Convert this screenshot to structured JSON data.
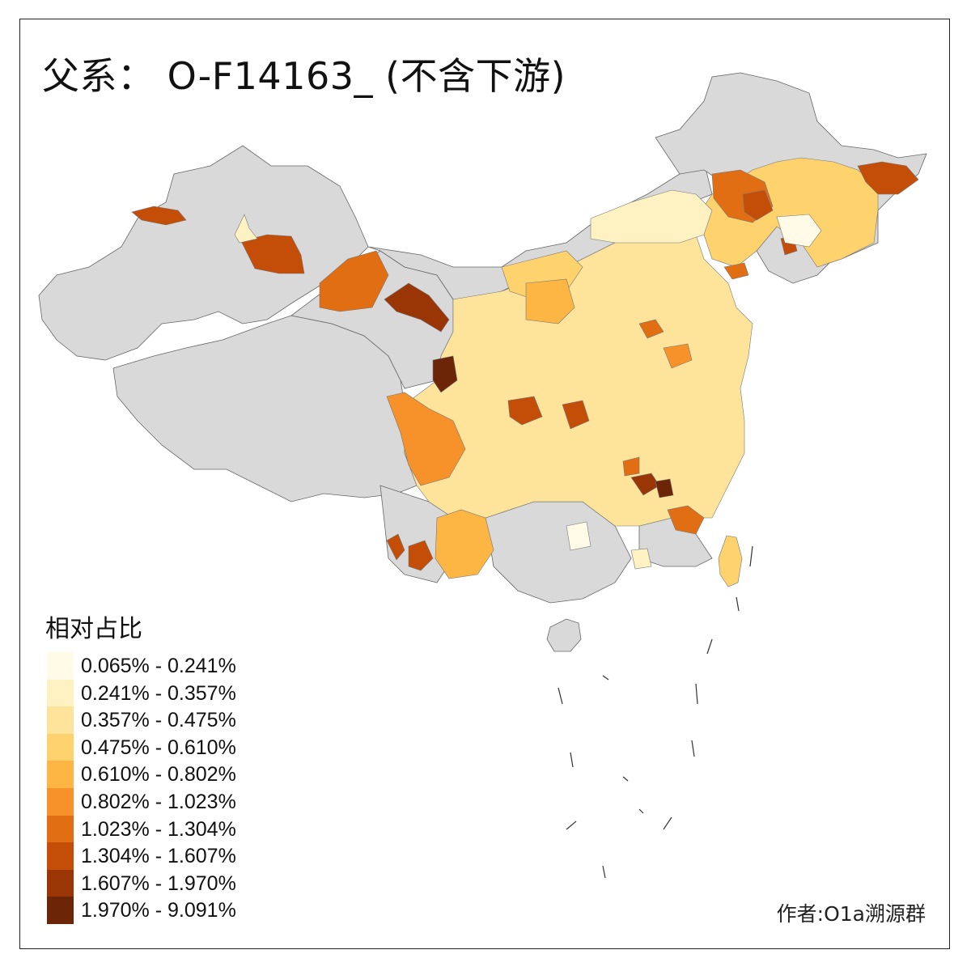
{
  "map": {
    "title": "父系： O-F14163_ (不含下游)",
    "legend_title": "相对占比",
    "credit": "作者:O1a溯源群",
    "no_data_color": "#d9d9d9",
    "legend": [
      {
        "range": "0.065% - 0.241%",
        "color": "#fffbe6"
      },
      {
        "range": "0.241% - 0.357%",
        "color": "#fff2c2"
      },
      {
        "range": "0.357% - 0.475%",
        "color": "#fde49a"
      },
      {
        "range": "0.475% - 0.610%",
        "color": "#fed36e"
      },
      {
        "range": "0.610% - 0.802%",
        "color": "#fdb544"
      },
      {
        "range": "0.802% - 1.023%",
        "color": "#f7922a"
      },
      {
        "range": "1.023% - 1.304%",
        "color": "#e26e14"
      },
      {
        "range": "1.304% - 1.607%",
        "color": "#c44d07"
      },
      {
        "range": "1.607% - 1.970%",
        "color": "#9a3505"
      },
      {
        "range": "1.970% - 9.091%",
        "color": "#6c2506"
      }
    ]
  }
}
